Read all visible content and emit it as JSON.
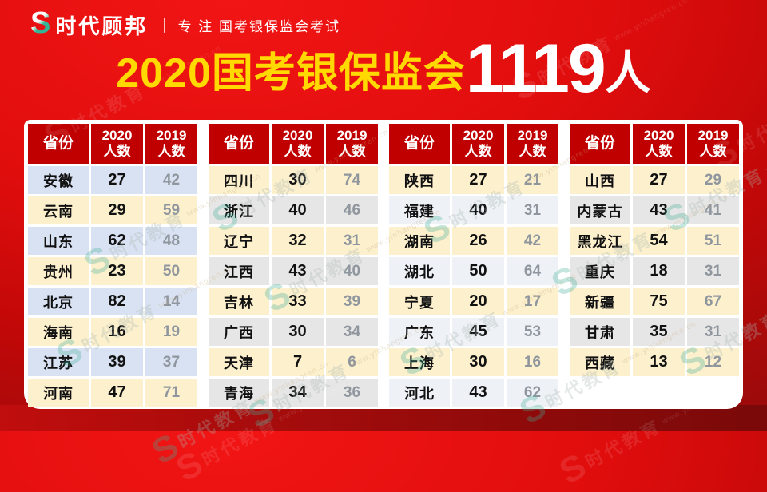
{
  "brand": {
    "logo": "S",
    "name": "时代顾邦",
    "divider": "|",
    "tagline": "专 注 国考银保监会考试"
  },
  "title": {
    "prefix": "2020国考银保监会",
    "number": "1119",
    "unit": "人"
  },
  "table_header": {
    "province": "省份",
    "y2020": "2020\n人数",
    "y2019": "2019\n人数"
  },
  "tables": [
    {
      "odd_color": "#d9e2f3",
      "even_color": "#fcf0cd",
      "rows": [
        {
          "province": "安徽",
          "y2020": "27",
          "y2019": "42"
        },
        {
          "province": "云南",
          "y2020": "29",
          "y2019": "59"
        },
        {
          "province": "山东",
          "y2020": "62",
          "y2019": "48"
        },
        {
          "province": "贵州",
          "y2020": "23",
          "y2019": "50"
        },
        {
          "province": "北京",
          "y2020": "82",
          "y2019": "14"
        },
        {
          "province": "海南",
          "y2020": "16",
          "y2019": "19"
        },
        {
          "province": "江苏",
          "y2020": "39",
          "y2019": "37"
        },
        {
          "province": "河南",
          "y2020": "47",
          "y2019": "71"
        }
      ]
    },
    {
      "odd_color": "#fcf0cd",
      "even_color": "#e7e6e6",
      "rows": [
        {
          "province": "四川",
          "y2020": "30",
          "y2019": "74"
        },
        {
          "province": "浙江",
          "y2020": "40",
          "y2019": "46"
        },
        {
          "province": "辽宁",
          "y2020": "32",
          "y2019": "31"
        },
        {
          "province": "江西",
          "y2020": "43",
          "y2019": "40"
        },
        {
          "province": "吉林",
          "y2020": "33",
          "y2019": "39"
        },
        {
          "province": "广西",
          "y2020": "30",
          "y2019": "34"
        },
        {
          "province": "天津",
          "y2020": "7",
          "y2019": "6"
        },
        {
          "province": "青海",
          "y2020": "34",
          "y2019": "36"
        }
      ]
    },
    {
      "odd_color": "#fcf0cd",
      "even_color": "#eef1f6",
      "rows": [
        {
          "province": "陕西",
          "y2020": "27",
          "y2019": "21"
        },
        {
          "province": "福建",
          "y2020": "40",
          "y2019": "31"
        },
        {
          "province": "湖南",
          "y2020": "26",
          "y2019": "42"
        },
        {
          "province": "湖北",
          "y2020": "50",
          "y2019": "64"
        },
        {
          "province": "宁夏",
          "y2020": "20",
          "y2019": "17"
        },
        {
          "province": "广东",
          "y2020": "45",
          "y2019": "53"
        },
        {
          "province": "上海",
          "y2020": "30",
          "y2019": "16"
        },
        {
          "province": "河北",
          "y2020": "43",
          "y2019": "62"
        }
      ]
    },
    {
      "odd_color": "#fcf0cd",
      "even_color": "#e7e6e6",
      "rows": [
        {
          "province": "山西",
          "y2020": "27",
          "y2019": "29"
        },
        {
          "province": "内蒙古",
          "y2020": "43",
          "y2019": "41"
        },
        {
          "province": "黑龙江",
          "y2020": "54",
          "y2019": "51"
        },
        {
          "province": "重庆",
          "y2020": "18",
          "y2019": "31"
        },
        {
          "province": "新疆",
          "y2020": "75",
          "y2019": "67"
        },
        {
          "province": "甘肃",
          "y2020": "35",
          "y2019": "31"
        },
        {
          "province": "西藏",
          "y2020": "13",
          "y2019": "12"
        }
      ]
    }
  ],
  "watermark": {
    "logo": "S",
    "text": "时代教育",
    "url": "www.yinhangren.cn"
  },
  "colors": {
    "background_red": "#d60d0d",
    "header_cell_red": "#c00000",
    "title_yellow": "#ffd900",
    "title_white": "#ffffff",
    "count_2019_gray": "#8f969e",
    "watermark_teal": "#3fae96"
  }
}
